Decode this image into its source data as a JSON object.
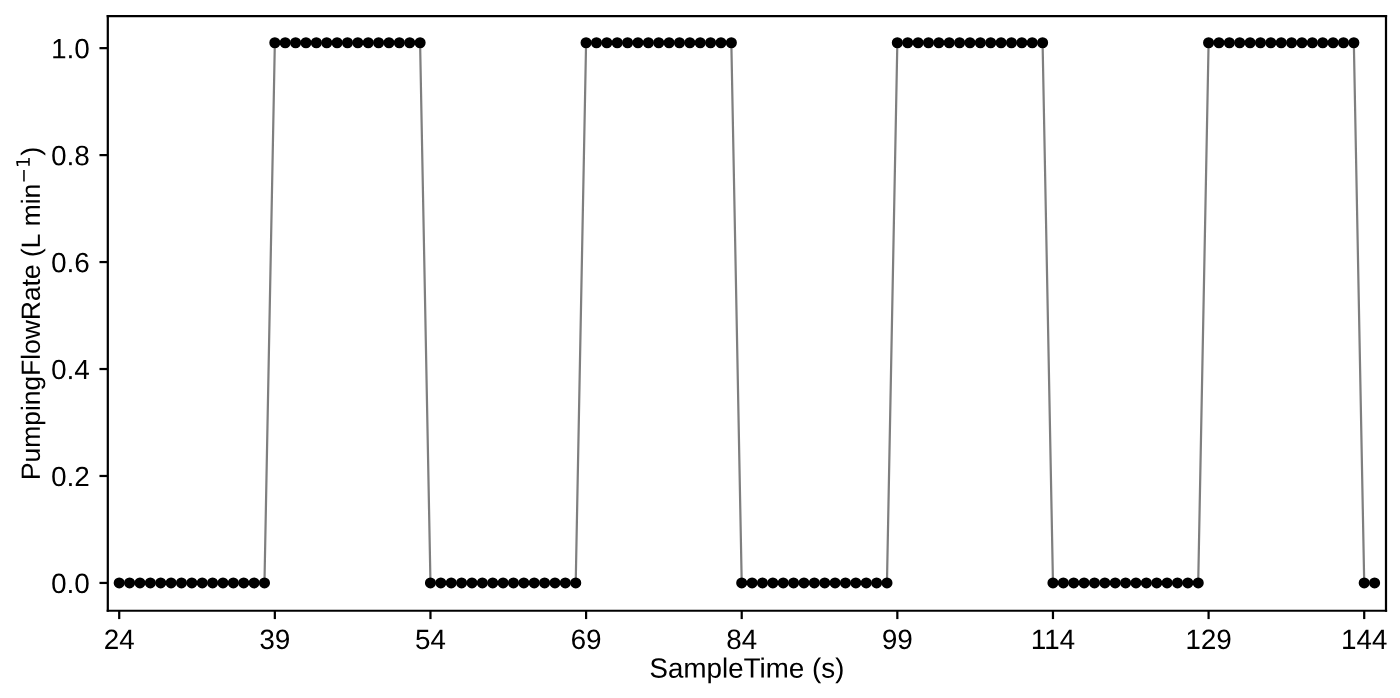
{
  "chart_data": {
    "type": "line",
    "xlabel": "SampleTime (s)",
    "ylabel": "PumpingFlowRate (L min$^{−1}$)",
    "xlim": [
      22.9,
      146.1
    ],
    "ylim": [
      -0.052,
      1.06
    ],
    "xticks": [
      24,
      39,
      54,
      69,
      84,
      99,
      114,
      129,
      144
    ],
    "yticks": [
      {
        "value": 0,
        "label": "0.0"
      },
      {
        "value": 0.2,
        "label": "0.2"
      },
      {
        "value": 0.4,
        "label": "0.4"
      },
      {
        "value": 0.6,
        "label": "0.6"
      },
      {
        "value": 0.8,
        "label": "0.8"
      },
      {
        "value": 1,
        "label": "1.0"
      }
    ],
    "grid": false,
    "legend": false,
    "marker": "circle",
    "line_style": "solid",
    "series": [
      {
        "color": "#000000",
        "x": [
          24,
          25,
          26,
          27,
          28,
          29,
          30,
          31,
          32,
          33,
          34,
          35,
          36,
          37,
          38,
          39,
          40,
          41,
          42,
          43,
          44,
          45,
          46,
          47,
          48,
          49,
          50,
          51,
          52,
          53,
          54,
          55,
          56,
          57,
          58,
          59,
          60,
          61,
          62,
          63,
          64,
          65,
          66,
          67,
          68,
          69,
          70,
          71,
          72,
          73,
          74,
          75,
          76,
          77,
          78,
          79,
          80,
          81,
          82,
          83,
          84,
          85,
          86,
          87,
          88,
          89,
          90,
          91,
          92,
          93,
          94,
          95,
          96,
          97,
          98,
          99,
          100,
          101,
          102,
          103,
          104,
          105,
          106,
          107,
          108,
          109,
          110,
          111,
          112,
          113,
          114,
          115,
          116,
          117,
          118,
          119,
          120,
          121,
          122,
          123,
          124,
          125,
          126,
          127,
          128,
          129,
          130,
          131,
          132,
          133,
          134,
          135,
          136,
          137,
          138,
          139,
          140,
          141,
          142,
          143,
          144,
          145
        ],
        "values": [
          0,
          0,
          0,
          0,
          0,
          0,
          0,
          0,
          0,
          0,
          0,
          0,
          0,
          0,
          0,
          1.01,
          1.01,
          1.01,
          1.01,
          1.01,
          1.01,
          1.01,
          1.01,
          1.01,
          1.01,
          1.01,
          1.01,
          1.01,
          1.01,
          1.01,
          0,
          0,
          0,
          0,
          0,
          0,
          0,
          0,
          0,
          0,
          0,
          0,
          0,
          0,
          0,
          1.01,
          1.01,
          1.01,
          1.01,
          1.01,
          1.01,
          1.01,
          1.01,
          1.01,
          1.01,
          1.01,
          1.01,
          1.01,
          1.01,
          1.01,
          0,
          0,
          0,
          0,
          0,
          0,
          0,
          0,
          0,
          0,
          0,
          0,
          0,
          0,
          0,
          1.01,
          1.01,
          1.01,
          1.01,
          1.01,
          1.01,
          1.01,
          1.01,
          1.01,
          1.01,
          1.01,
          1.01,
          1.01,
          1.01,
          1.01,
          0,
          0,
          0,
          0,
          0,
          0,
          0,
          0,
          0,
          0,
          0,
          0,
          0,
          0,
          0,
          1.01,
          1.01,
          1.01,
          1.01,
          1.01,
          1.01,
          1.01,
          1.01,
          1.01,
          1.01,
          1.01,
          1.01,
          1.01,
          1.01,
          1.01,
          0,
          0
        ]
      }
    ]
  }
}
